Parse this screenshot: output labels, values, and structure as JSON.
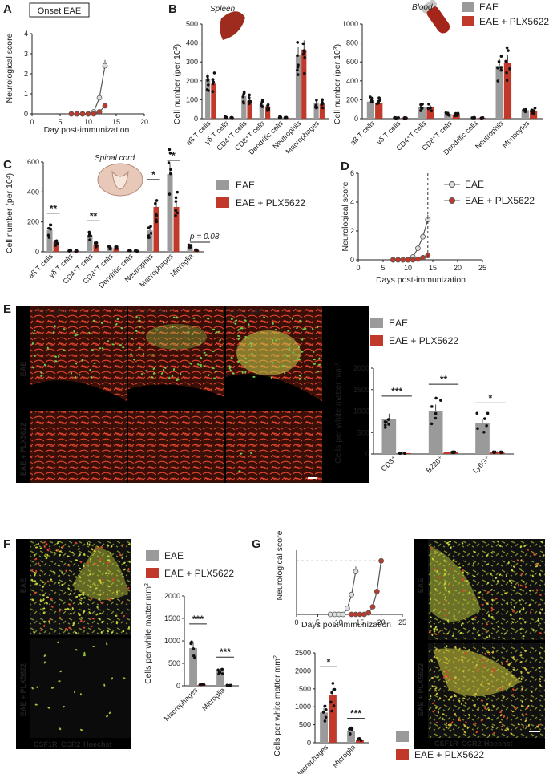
{
  "colors": {
    "eae": "#9a9a9a",
    "plx": "#c0392b",
    "micro_bg": "#0a0a0a",
    "cd3": "#6fd14a",
    "mbp": "#e0442c"
  },
  "panels": {
    "A": "A",
    "B": "B",
    "C": "C",
    "D": "D",
    "E": "E",
    "F": "F",
    "G": "G"
  },
  "legend": {
    "eae": "EAE",
    "plx": "EAE + PLX5622"
  },
  "A": {
    "box_title": "Onset EAE",
    "ylabel": "Neurological score",
    "xlabel": "Day post-immunization"
  },
  "B": {
    "title_spleen": "Spleen",
    "title_blood": "Blood",
    "ylabel": "Cell number (per 10",
    "ylabel_sup": "3",
    "ylabel_end": ")"
  },
  "C": {
    "title": "Spinal cord",
    "ylabel": "Cell number (per 10",
    "ylabel_sup": "3",
    "ylabel_end": ")",
    "pval": "p = 0.08"
  },
  "D": {
    "ylabel": "Neurological score",
    "xlabel": "Days post-immunization"
  },
  "E": {
    "row_eae": "EAE",
    "row_plx": "EAE + PLX5622",
    "stain1_g": "CD3",
    "stain1_r": "MBP",
    "stain2_g": "B220",
    "stain2_r": "MBP",
    "stain3_g": "Ly6G",
    "stain3_r": "MBP",
    "ylabel": "Cells per white matter mm",
    "ylabel_sup": "2"
  },
  "F": {
    "row_eae": "EAE",
    "row_plx": "EAE + PLX5622",
    "stain_g": "CSF1R",
    "stain_r": "CCR2",
    "stain_w": "Hoechst",
    "ylabel": "Cells per white matter mm",
    "ylabel_sup": "2"
  },
  "G": {
    "row_eae": "EAE",
    "row_plx": "EAE + PLX5622",
    "stain_g": "CSF1R",
    "stain_r": "CCR2",
    "stain_w": "Hoechst",
    "ylabel_line": "Neurological score",
    "xlabel_line": "Days post-immunization",
    "ylabel_bar": "Cells per white matter mm",
    "ylabel_sup": "2"
  },
  "chart_data": [
    {
      "id": "A",
      "type": "line",
      "xlim": [
        0,
        20
      ],
      "ylim": [
        0,
        4
      ],
      "xticks": [
        0,
        5,
        10,
        15,
        20
      ],
      "yticks": [
        0,
        1,
        2,
        3,
        4
      ],
      "series": [
        {
          "name": "EAE",
          "x": [
            7,
            8,
            9,
            10,
            11,
            12,
            13
          ],
          "y": [
            0,
            0,
            0,
            0,
            0.1,
            0.8,
            2.4
          ]
        },
        {
          "name": "EAE + PLX5622",
          "x": [
            7,
            8,
            9,
            10,
            11,
            12,
            13
          ],
          "y": [
            0,
            0,
            0,
            0,
            0,
            0.1,
            0.4
          ]
        }
      ]
    },
    {
      "id": "B-spleen",
      "type": "bar",
      "ylim": [
        0,
        500
      ],
      "yticks": [
        0,
        100,
        200,
        300,
        400,
        500
      ],
      "categories": [
        "aß T cells",
        "γδ T cells",
        "CD4⁺T cells",
        "CD8⁺T cells",
        "Dendritic cells",
        "Neutrophils",
        "Macrophages"
      ],
      "series": [
        {
          "name": "EAE",
          "values": [
            210,
            8,
            120,
            75,
            8,
            335,
            85
          ]
        },
        {
          "name": "EAE + PLX5622",
          "values": [
            185,
            6,
            95,
            65,
            6,
            365,
            78
          ]
        }
      ]
    },
    {
      "id": "B-blood",
      "type": "bar",
      "ylim": [
        0,
        1000
      ],
      "yticks": [
        0,
        200,
        400,
        600,
        800,
        1000
      ],
      "categories": [
        "aß T cells",
        "γδ T cells",
        "CD4⁺T cells",
        "CD8⁺T cells",
        "Dendritic cells",
        "Neutrophils",
        "Monocytes"
      ],
      "series": [
        {
          "name": "EAE",
          "values": [
            180,
            10,
            120,
            50,
            10,
            560,
            90
          ]
        },
        {
          "name": "EAE + PLX5622",
          "values": [
            165,
            8,
            120,
            45,
            8,
            590,
            85
          ]
        }
      ]
    },
    {
      "id": "C",
      "type": "bar",
      "ylim": [
        0,
        600
      ],
      "yticks": [
        0,
        200,
        400,
        600
      ],
      "categories": [
        "aß T cells",
        "γδ T cells",
        "CD4⁺T cells",
        "CD8⁺T cells",
        "Dendritic cells",
        "Neutrophils",
        "Macrophages",
        "Microglia"
      ],
      "series": [
        {
          "name": "EAE",
          "values": [
            145,
            8,
            110,
            30,
            8,
            145,
            520,
            35
          ]
        },
        {
          "name": "EAE + PLX5622",
          "values": [
            65,
            6,
            50,
            25,
            6,
            300,
            300,
            10
          ]
        }
      ],
      "significance": [
        {
          "category": "aß T cells",
          "label": "**"
        },
        {
          "category": "CD4⁺T cells",
          "label": "**"
        },
        {
          "category": "Neutrophils",
          "label": "*"
        },
        {
          "category": "Macrophages",
          "label": "*"
        }
      ]
    },
    {
      "id": "D",
      "type": "line",
      "xlim": [
        0,
        25
      ],
      "ylim": [
        0,
        6
      ],
      "xticks": [
        0,
        5,
        10,
        15,
        20,
        25
      ],
      "yticks": [
        0,
        2,
        4,
        6
      ],
      "series": [
        {
          "name": "EAE",
          "x": [
            7,
            8,
            9,
            10,
            11,
            12,
            13,
            14
          ],
          "y": [
            0,
            0,
            0,
            0,
            0.2,
            0.8,
            1.6,
            2.8
          ]
        },
        {
          "name": "EAE + PLX5622",
          "x": [
            7,
            8,
            9,
            10,
            11,
            12,
            13,
            14
          ],
          "y": [
            0,
            0,
            0,
            0,
            0,
            0.05,
            0.15,
            0.3
          ]
        }
      ]
    },
    {
      "id": "E",
      "type": "bar",
      "ylim": [
        0,
        2000
      ],
      "yticks": [
        0,
        500,
        1000,
        1500,
        2000
      ],
      "categories": [
        "CD3⁺",
        "B220⁺",
        "Ly6G⁺"
      ],
      "series": [
        {
          "name": "EAE",
          "values": [
            820,
            1010,
            710
          ]
        },
        {
          "name": "EAE + PLX5622",
          "values": [
            20,
            40,
            40
          ]
        }
      ],
      "significance": [
        {
          "category": "CD3⁺",
          "label": "***"
        },
        {
          "category": "B220⁺",
          "label": "**"
        },
        {
          "category": "Ly6G⁺",
          "label": "*"
        }
      ]
    },
    {
      "id": "F",
      "type": "bar",
      "ylim": [
        0,
        2000
      ],
      "yticks": [
        0,
        500,
        1000,
        1500,
        2000
      ],
      "categories": [
        "Macrophages",
        "Microglia"
      ],
      "series": [
        {
          "name": "EAE",
          "values": [
            840,
            330
          ]
        },
        {
          "name": "EAE + PLX5622",
          "values": [
            30,
            10
          ]
        }
      ],
      "significance": [
        {
          "category": "Macrophages",
          "label": "***"
        },
        {
          "category": "Microglia",
          "label": "***"
        }
      ]
    },
    {
      "id": "G-line",
      "type": "line",
      "xlim": [
        0,
        25
      ],
      "ylim": [
        0,
        4.2
      ],
      "xticks": [
        0,
        5,
        10,
        15,
        20,
        25
      ],
      "series": [
        {
          "name": "EAE",
          "x": [
            8,
            9,
            10,
            11,
            12,
            13,
            14
          ],
          "y": [
            0,
            0,
            0,
            0,
            0.4,
            1.3,
            2.8
          ]
        },
        {
          "name": "EAE + PLX5622",
          "x": [
            13,
            14,
            15,
            16,
            17,
            18,
            19,
            20
          ],
          "y": [
            0,
            0,
            0,
            0,
            0.1,
            0.5,
            1.5,
            3.5
          ]
        }
      ]
    },
    {
      "id": "G-bar",
      "type": "bar",
      "ylim": [
        0,
        2500
      ],
      "yticks": [
        0,
        500,
        1000,
        1500,
        2000,
        2500
      ],
      "categories": [
        "Macrophages",
        "Microglia"
      ],
      "series": [
        {
          "name": "EAE",
          "values": [
            840,
            330
          ]
        },
        {
          "name": "EAE + PLX5622",
          "values": [
            1320,
            90
          ]
        }
      ],
      "significance": [
        {
          "category": "Macrophages",
          "label": "*"
        },
        {
          "category": "Microglia",
          "label": "***"
        }
      ]
    }
  ]
}
